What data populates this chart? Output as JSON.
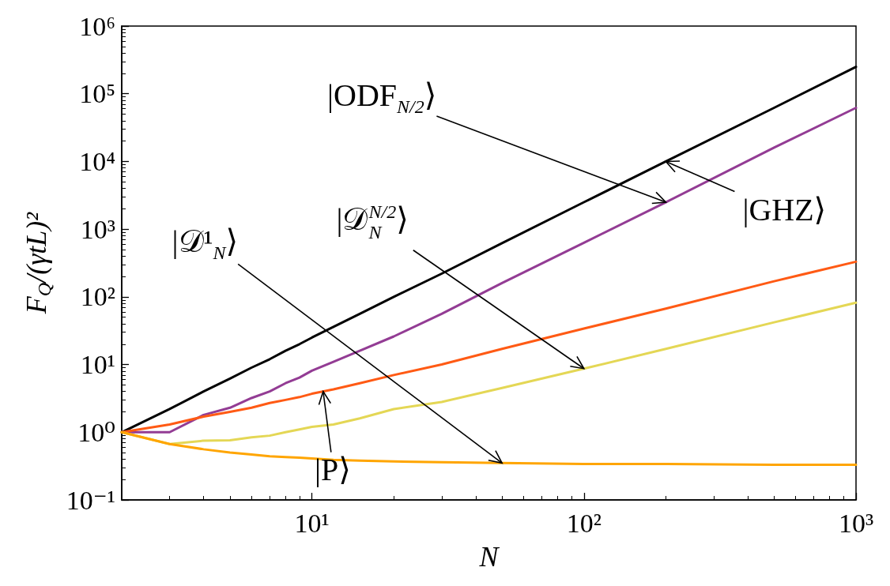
{
  "chart_data": {
    "type": "line",
    "xlabel": "N",
    "ylabel": "F$_{Q}$/(γtL)²",
    "x": [
      2,
      3,
      4,
      5,
      6,
      7,
      8,
      9,
      10,
      12,
      15,
      20,
      30,
      50,
      100,
      200,
      500,
      1000
    ],
    "series": [
      {
        "color": "#000000",
        "values": [
          1,
          2.2,
          4,
          6.2,
          9,
          12,
          16,
          20,
          25,
          36,
          56,
          100,
          220,
          620,
          2500,
          10000,
          62000,
          250000
        ]
      },
      {
        "color": "#933c94",
        "values": [
          1,
          1,
          1.8,
          2.3,
          3.2,
          4.0,
          5.3,
          6.4,
          8.1,
          11,
          16,
          26,
          56,
          160,
          630,
          2500,
          16000,
          62000
        ]
      },
      {
        "color": "#ff5a14",
        "values": [
          1,
          1.3,
          1.7,
          2.0,
          2.3,
          2.7,
          3.0,
          3.3,
          3.7,
          4.3,
          5.3,
          7.0,
          10,
          17,
          34,
          67,
          170,
          330
        ]
      },
      {
        "color": "#e4d755",
        "values": [
          1,
          0.67,
          0.75,
          0.76,
          0.84,
          0.89,
          1.0,
          1.1,
          1.2,
          1.3,
          1.6,
          2.2,
          2.8,
          4.5,
          8.7,
          17,
          42,
          82
        ]
      },
      {
        "color": "#ffa500",
        "values": [
          1,
          0.67,
          0.56,
          0.5,
          0.47,
          0.44,
          0.43,
          0.42,
          0.41,
          0.39,
          0.38,
          0.37,
          0.36,
          0.35,
          0.34,
          0.34,
          0.33,
          0.33
        ]
      }
    ],
    "xlim": [
      2,
      1000
    ],
    "xticks": [
      {
        "value": 3,
        "label": null
      },
      {
        "value": 4,
        "label": null
      },
      {
        "value": 5,
        "label": null
      },
      {
        "value": 6,
        "label": null
      },
      {
        "value": 7,
        "label": null
      },
      {
        "value": 8,
        "label": null
      },
      {
        "value": 9,
        "label": null
      },
      {
        "value": 10,
        "label": "10¹"
      },
      {
        "value": 20,
        "label": null
      },
      {
        "value": 30,
        "label": null
      },
      {
        "value": 40,
        "label": null
      },
      {
        "value": 50,
        "label": null
      },
      {
        "value": 60,
        "label": null
      },
      {
        "value": 70,
        "label": null
      },
      {
        "value": 80,
        "label": null
      },
      {
        "value": 90,
        "label": null
      },
      {
        "value": 100,
        "label": "10²"
      },
      {
        "value": 200,
        "label": null
      },
      {
        "value": 300,
        "label": null
      },
      {
        "value": 400,
        "label": null
      },
      {
        "value": 500,
        "label": null
      },
      {
        "value": 600,
        "label": null
      },
      {
        "value": 700,
        "label": null
      },
      {
        "value": 800,
        "label": null
      },
      {
        "value": 900,
        "label": null
      },
      {
        "value": 1000,
        "label": "10³"
      }
    ],
    "ylim": [
      0.1,
      1000000
    ],
    "yticks": [
      {
        "value": 0.1,
        "label": "10⁻¹"
      },
      {
        "value": 0.2,
        "label": null
      },
      {
        "value": 0.3,
        "label": null
      },
      {
        "value": 0.4,
        "label": null
      },
      {
        "value": 0.5,
        "label": null
      },
      {
        "value": 0.6,
        "label": null
      },
      {
        "value": 0.7,
        "label": null
      },
      {
        "value": 0.8,
        "label": null
      },
      {
        "value": 0.9,
        "label": null
      },
      {
        "value": 1,
        "label": "10⁰"
      },
      {
        "value": 2,
        "label": null
      },
      {
        "value": 3,
        "label": null
      },
      {
        "value": 4,
        "label": null
      },
      {
        "value": 5,
        "label": null
      },
      {
        "value": 6,
        "label": null
      },
      {
        "value": 7,
        "label": null
      },
      {
        "value": 8,
        "label": null
      },
      {
        "value": 9,
        "label": null
      },
      {
        "value": 10,
        "label": "10¹"
      },
      {
        "value": 20,
        "label": null
      },
      {
        "value": 30,
        "label": null
      },
      {
        "value": 40,
        "label": null
      },
      {
        "value": 50,
        "label": null
      },
      {
        "value": 60,
        "label": null
      },
      {
        "value": 70,
        "label": null
      },
      {
        "value": 80,
        "label": null
      },
      {
        "value": 90,
        "label": null
      },
      {
        "value": 100,
        "label": "10²"
      },
      {
        "value": 200,
        "label": null
      },
      {
        "value": 300,
        "label": null
      },
      {
        "value": 400,
        "label": null
      },
      {
        "value": 500,
        "label": null
      },
      {
        "value": 600,
        "label": null
      },
      {
        "value": 700,
        "label": null
      },
      {
        "value": 800,
        "label": null
      },
      {
        "value": 900,
        "label": null
      },
      {
        "value": 1000,
        "label": "10³"
      },
      {
        "value": 2000,
        "label": null
      },
      {
        "value": 3000,
        "label": null
      },
      {
        "value": 4000,
        "label": null
      },
      {
        "value": 5000,
        "label": null
      },
      {
        "value": 6000,
        "label": null
      },
      {
        "value": 7000,
        "label": null
      },
      {
        "value": 8000,
        "label": null
      },
      {
        "value": 9000,
        "label": null
      },
      {
        "value": 10000,
        "label": "10⁴"
      },
      {
        "value": 20000,
        "label": null
      },
      {
        "value": 30000,
        "label": null
      },
      {
        "value": 40000,
        "label": null
      },
      {
        "value": 50000,
        "label": null
      },
      {
        "value": 60000,
        "label": null
      },
      {
        "value": 70000,
        "label": null
      },
      {
        "value": 80000,
        "label": null
      },
      {
        "value": 90000,
        "label": null
      },
      {
        "value": 100000,
        "label": "10⁵"
      },
      {
        "value": 200000,
        "label": null
      },
      {
        "value": 300000,
        "label": null
      },
      {
        "value": 400000,
        "label": null
      },
      {
        "value": 500000,
        "label": null
      },
      {
        "value": 600000,
        "label": null
      },
      {
        "value": 700000,
        "label": null
      },
      {
        "value": 800000,
        "label": null
      },
      {
        "value": 900000,
        "label": null
      },
      {
        "value": 1000000,
        "label": "10⁶"
      }
    ],
    "log": "xy",
    "grid": false,
    "marker": "none",
    "line_style": "solid",
    "annotations": [
      {
        "text": "|ODF$_{N/2}$⟩",
        "x": 200,
        "y": 2500
      },
      {
        "text": "|GHZ⟩",
        "x": 200,
        "y": 10000
      },
      {
        "text": "|𝒟$^{N/2}$$_{N}$⟩",
        "x": 100,
        "y": 8.7
      },
      {
        "text": "|𝒟¹$_{N}$⟩",
        "x": 50,
        "y": 0.35
      },
      {
        "text": "|P⟩",
        "x": 11,
        "y": 4
      }
    ]
  }
}
